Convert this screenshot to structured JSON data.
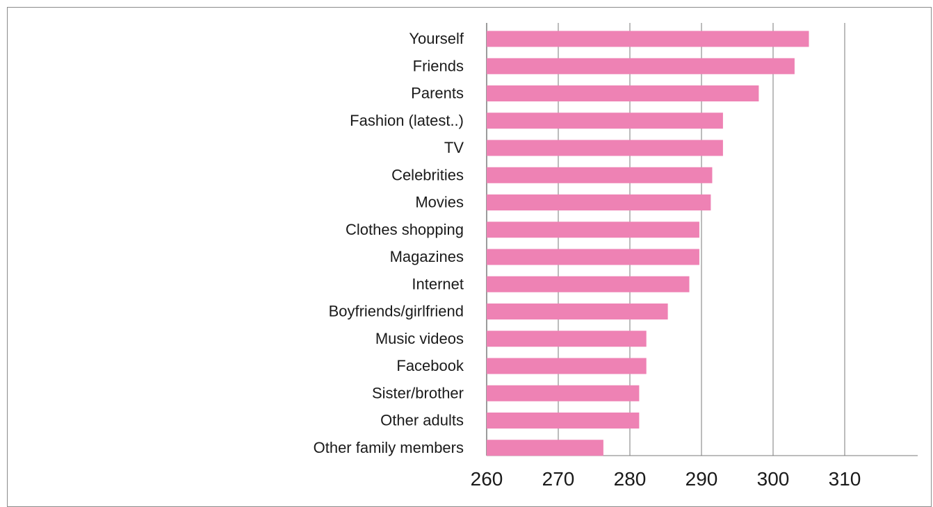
{
  "chart_data": {
    "type": "bar",
    "orientation": "horizontal",
    "categories": [
      "Yourself",
      "Friends",
      "Parents",
      "Fashion (latest..)",
      "TV",
      "Celebrities",
      "Movies",
      "Clothes shopping",
      "Magazines",
      "Internet",
      "Boyfriends/girlfriend",
      "Music videos",
      "Facebook",
      "Sister/brother",
      "Other adults",
      "Other family members"
    ],
    "values": [
      305,
      303,
      298,
      293,
      293,
      291.5,
      291.3,
      289.7,
      289.7,
      288.3,
      285.3,
      282.3,
      282.3,
      281.3,
      281.3,
      276.3
    ],
    "xlim": [
      260,
      320
    ],
    "xticks": [
      "260",
      "270",
      "280",
      "290",
      "300",
      "310"
    ],
    "grid": true,
    "title": "",
    "xlabel": "",
    "ylabel": "",
    "colors": {
      "bar": "#ee82b4",
      "grid": "#7a7a7a",
      "frame": "#8a8a8a"
    }
  }
}
